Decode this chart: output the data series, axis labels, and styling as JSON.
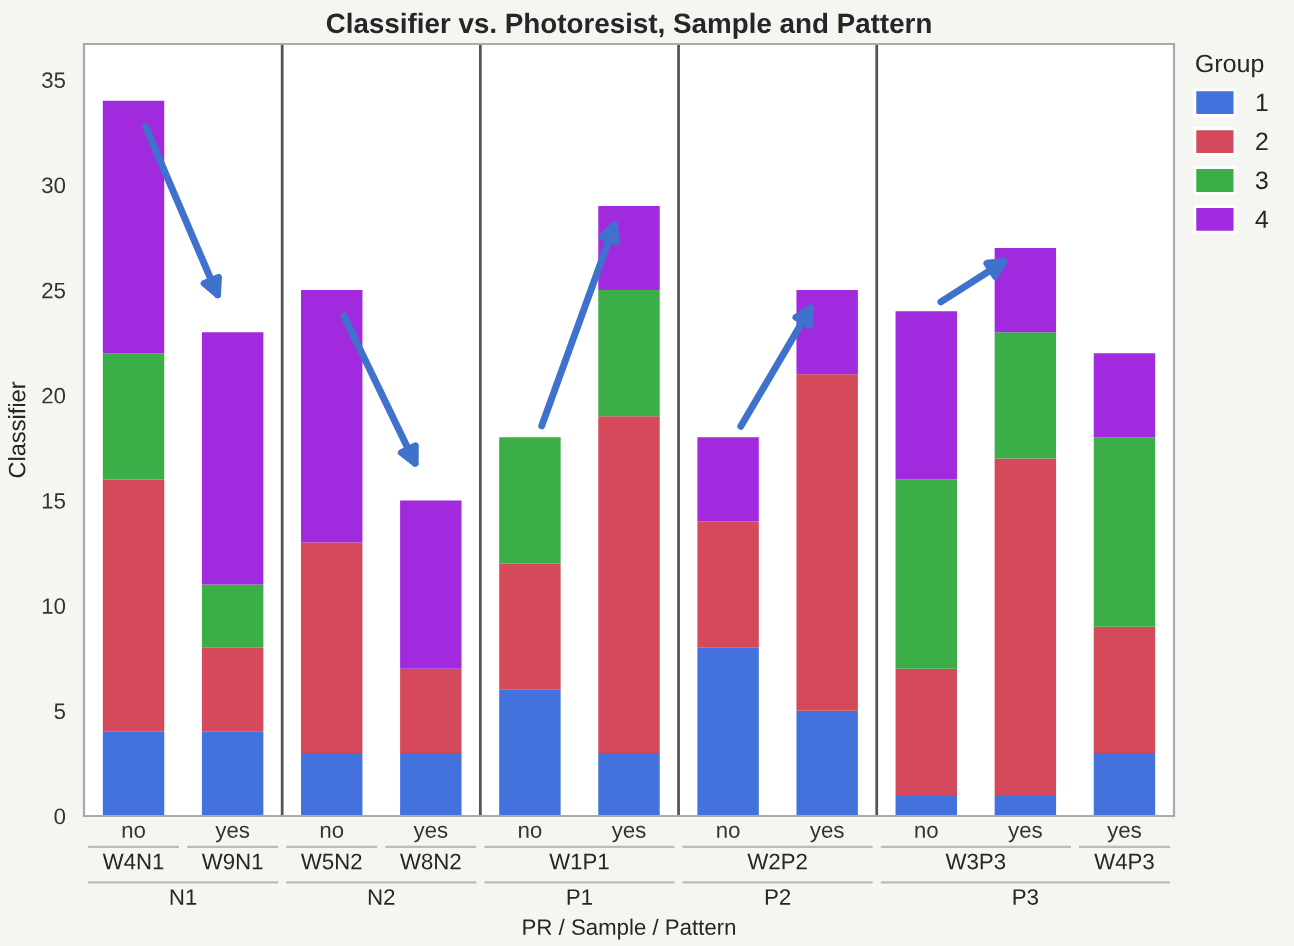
{
  "chart_data": {
    "type": "bar",
    "title": "Classifier vs. Photoresist, Sample and Pattern",
    "xlabel": "PR / Sample / Pattern",
    "ylabel": "Classifier",
    "legend_title": "Group",
    "categories": [
      "no",
      "yes",
      "no",
      "yes",
      "no",
      "yes",
      "no",
      "yes",
      "no",
      "yes",
      "yes"
    ],
    "stacked": true,
    "series": [
      {
        "name": "1",
        "color": "#4472dc",
        "values": [
          4,
          4,
          3,
          3,
          6,
          3,
          8,
          5,
          1,
          1,
          3
        ]
      },
      {
        "name": "2",
        "color": "#d44a5a",
        "values": [
          12,
          4,
          10,
          4,
          6,
          16,
          6,
          16,
          6,
          16,
          6
        ]
      },
      {
        "name": "3",
        "color": "#3cae48",
        "values": [
          6,
          3,
          0,
          0,
          6,
          6,
          0,
          0,
          9,
          6,
          9
        ]
      },
      {
        "name": "4",
        "color": "#a22ade",
        "values": [
          12,
          12,
          12,
          8,
          0,
          4,
          4,
          4,
          8,
          4,
          4
        ]
      }
    ],
    "annotations": [
      "W4N1",
      "W9N1",
      "W5N2",
      "W8N2",
      "W1P1",
      "W2P2",
      "W3P3",
      "W4P3",
      "N1",
      "N2",
      "P1",
      "P2",
      "P3"
    ],
    "ylim": [
      0,
      36.7
    ],
    "yticks": [
      0,
      5,
      10,
      15,
      20,
      25,
      30,
      35
    ],
    "grid": false,
    "legend": "top right"
  }
}
